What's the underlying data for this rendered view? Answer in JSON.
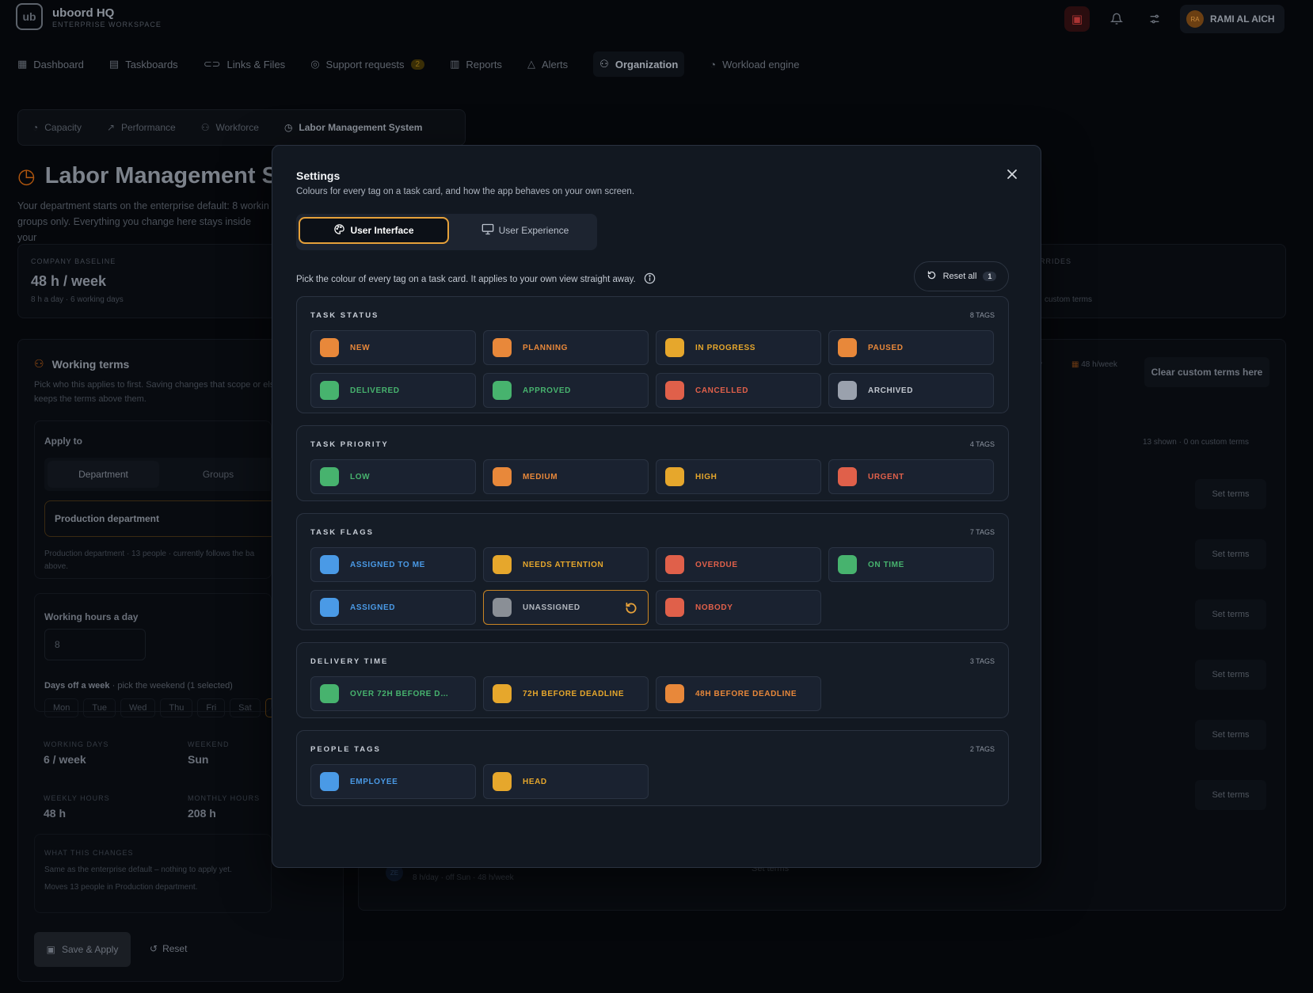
{
  "app": {
    "brand": "uboord HQ",
    "brand_sub": "ENTERPRISE WORKSPACE",
    "logo_text": "ub",
    "user_initials": "RA",
    "user_name": "RAMI AL AICH"
  },
  "nav": [
    {
      "label": "Dashboard",
      "icon": "grid-icon"
    },
    {
      "label": "Taskboards",
      "icon": "board-icon"
    },
    {
      "label": "Links & Files",
      "icon": "link-icon"
    },
    {
      "label": "Support requests",
      "icon": "lifebuoy-icon",
      "badge": "2"
    },
    {
      "label": "Reports",
      "icon": "bar-chart-icon"
    },
    {
      "label": "Alerts",
      "icon": "bell-icon"
    },
    {
      "label": "Organization",
      "icon": "users-icon",
      "active": true
    },
    {
      "label": "Workload engine",
      "icon": "gauge-icon"
    }
  ],
  "subtabs": [
    {
      "label": "Capacity"
    },
    {
      "label": "Performance"
    },
    {
      "label": "Workforce"
    },
    {
      "label": "Labor Management System",
      "active": true
    }
  ],
  "page": {
    "title": "Labor Management Sy",
    "desc_1": "Your department starts on the enterprise default: 8 workin",
    "desc_2": "groups only. Everything you change here stays inside your"
  },
  "baseline": {
    "label": "COMPANY BASELINE",
    "value": "48 h / week",
    "sub": "8 h a day · 6 working days",
    "right_label": "RRIDES",
    "right_sub": "custom terms"
  },
  "working": {
    "title": "Working terms",
    "desc": "Pick who this applies to first. Saving changes that scope or else keeps the terms above them.",
    "apply_label": "Apply to",
    "seg_department": "Department",
    "seg_groups": "Groups",
    "dept_value": "Production department",
    "dept_note": "Production department · 13 people · currently follows the ba above.",
    "hours_label": "Working hours a day",
    "hours_value": "8",
    "days_label": "Days off a week",
    "days_hint": " · pick the weekend (1 selected)",
    "days": [
      "Mon",
      "Tue",
      "Wed",
      "Thu",
      "Fri",
      "Sat",
      "S"
    ],
    "stats": {
      "working_days_label": "WORKING DAYS",
      "working_days": "6 / week",
      "weekend_label": "WEEKEND",
      "weekend": "Sun",
      "weekly_label": "WEEKLY HOURS",
      "weekly": "48 h",
      "monthly_label": "MONTHLY HOURS",
      "monthly": "208 h"
    },
    "changes_label": "WHAT THIS CHANGES",
    "changes_1": "Same as the enterprise default – nothing to apply yet.",
    "changes_2": "Moves 13 people in Production department.",
    "save_label": "Save & Apply",
    "reset_label": "Reset"
  },
  "right_panel": {
    "chip_1": "y",
    "chip_2": "48 h/week",
    "clear_label": "Clear custom terms here",
    "shown": "13 shown · 0 on custom terms",
    "set_terms": "Set terms",
    "row_sub": "8 h/day · off Sun · 48 h/week",
    "row_initials": "ZE",
    "row_btn": "Set terms"
  },
  "modal": {
    "title": "Settings",
    "subtitle": "Colours for every tag on a task card, and how the app behaves on your own screen.",
    "tabs": {
      "ui": "User Interface",
      "ux": "User Experience"
    },
    "hint": "Pick the colour of every tag on a task card. It applies to your own view straight away.",
    "reset_all": "Reset all",
    "reset_count": "1",
    "sections": [
      {
        "title": "TASK STATUS",
        "count": "8 TAGS",
        "tags": [
          {
            "label": "NEW",
            "color": "#e8883a",
            "text": "#e8883a"
          },
          {
            "label": "PLANNING",
            "color": "#e8883a",
            "text": "#e8883a"
          },
          {
            "label": "IN PROGRESS",
            "color": "#e6a72c",
            "text": "#e6a72c"
          },
          {
            "label": "PAUSED",
            "color": "#e8883a",
            "text": "#e8883a"
          },
          {
            "label": "DELIVERED",
            "color": "#47b36e",
            "text": "#47b36e"
          },
          {
            "label": "APPROVED",
            "color": "#47b36e",
            "text": "#47b36e"
          },
          {
            "label": "CANCELLED",
            "color": "#e0604a",
            "text": "#e0604a"
          },
          {
            "label": "ARCHIVED",
            "color": "#9aa1ad",
            "text": "#c2c7cf"
          }
        ]
      },
      {
        "title": "TASK PRIORITY",
        "count": "4 TAGS",
        "tags": [
          {
            "label": "LOW",
            "color": "#47b36e",
            "text": "#47b36e"
          },
          {
            "label": "MEDIUM",
            "color": "#e8883a",
            "text": "#e8883a"
          },
          {
            "label": "HIGH",
            "color": "#e6a72c",
            "text": "#e6a72c"
          },
          {
            "label": "URGENT",
            "color": "#e0604a",
            "text": "#e0604a"
          }
        ]
      },
      {
        "title": "TASK FLAGS",
        "count": "7 TAGS",
        "tags": [
          {
            "label": "ASSIGNED TO ME",
            "color": "#4a9ae6",
            "text": "#4a9ae6"
          },
          {
            "label": "NEEDS ATTENTION",
            "color": "#e6a72c",
            "text": "#e6a72c"
          },
          {
            "label": "OVERDUE",
            "color": "#e0604a",
            "text": "#e0604a"
          },
          {
            "label": "ON TIME",
            "color": "#47b36e",
            "text": "#47b36e"
          },
          {
            "label": "ASSIGNED",
            "color": "#4a9ae6",
            "text": "#4a9ae6"
          },
          {
            "label": "UNASSIGNED",
            "color": "#8a8f96",
            "text": "#b2b7be",
            "edited": true
          },
          {
            "label": "NOBODY",
            "color": "#e0604a",
            "text": "#e0604a"
          }
        ]
      },
      {
        "title": "DELIVERY TIME",
        "count": "3 TAGS",
        "tags": [
          {
            "label": "OVER 72H BEFORE DE...",
            "color": "#47b36e",
            "text": "#47b36e"
          },
          {
            "label": "72H BEFORE DEADLINE",
            "color": "#e6a72c",
            "text": "#e6a72c"
          },
          {
            "label": "48H BEFORE DEADLINE",
            "color": "#e8883a",
            "text": "#e8883a"
          }
        ]
      },
      {
        "title": "PEOPLE TAGS",
        "count": "2 TAGS",
        "tags": [
          {
            "label": "EMPLOYEE",
            "color": "#4a9ae6",
            "text": "#4a9ae6"
          },
          {
            "label": "HEAD",
            "color": "#e6a72c",
            "text": "#e6a72c"
          }
        ]
      }
    ]
  }
}
